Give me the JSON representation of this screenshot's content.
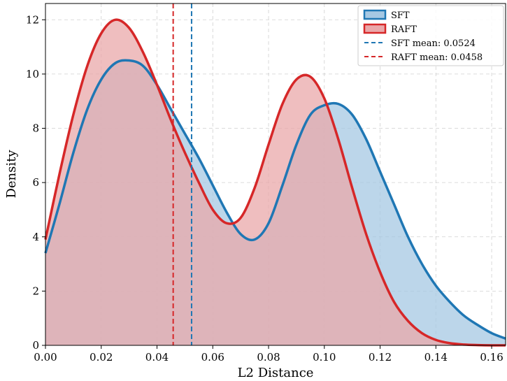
{
  "chart_data": {
    "type": "area",
    "xlabel": "L2 Distance",
    "ylabel": "Density",
    "xlim": [
      0,
      0.165
    ],
    "ylim": [
      0,
      12.6
    ],
    "xticks": [
      "0.00",
      "0.02",
      "0.04",
      "0.06",
      "0.08",
      "0.10",
      "0.12",
      "0.14",
      "0.16"
    ],
    "yticks": [
      "0",
      "2",
      "4",
      "6",
      "8",
      "10",
      "12"
    ],
    "grid": true,
    "legend_position": "top-right",
    "series": [
      {
        "name": "SFT",
        "color": "#1f77b4",
        "fill_color": "#a6c8e3",
        "x": [
          0.0,
          0.005,
          0.01,
          0.015,
          0.02,
          0.025,
          0.03,
          0.035,
          0.04,
          0.045,
          0.05,
          0.055,
          0.06,
          0.065,
          0.07,
          0.075,
          0.08,
          0.085,
          0.09,
          0.095,
          0.1,
          0.105,
          0.11,
          0.115,
          0.12,
          0.125,
          0.13,
          0.135,
          0.14,
          0.145,
          0.15,
          0.155,
          0.16,
          0.165
        ],
        "y": [
          3.4,
          5.2,
          7.1,
          8.7,
          9.8,
          10.4,
          10.5,
          10.3,
          9.6,
          8.7,
          7.8,
          6.9,
          5.9,
          4.9,
          4.1,
          3.9,
          4.5,
          5.9,
          7.4,
          8.5,
          8.85,
          8.9,
          8.5,
          7.6,
          6.4,
          5.2,
          4.0,
          3.0,
          2.2,
          1.6,
          1.1,
          0.75,
          0.45,
          0.25
        ]
      },
      {
        "name": "RAFT",
        "color": "#d62728",
        "fill_color": "#eaa8aa",
        "x": [
          0.0,
          0.005,
          0.01,
          0.015,
          0.02,
          0.025,
          0.03,
          0.035,
          0.04,
          0.045,
          0.05,
          0.055,
          0.06,
          0.065,
          0.07,
          0.075,
          0.08,
          0.085,
          0.09,
          0.095,
          0.1,
          0.105,
          0.11,
          0.115,
          0.12,
          0.125,
          0.13,
          0.135,
          0.14,
          0.145,
          0.15,
          0.155,
          0.16,
          0.165
        ],
        "y": [
          3.9,
          6.3,
          8.5,
          10.3,
          11.5,
          12.0,
          11.7,
          10.8,
          9.6,
          8.3,
          7.1,
          6.0,
          5.0,
          4.5,
          4.7,
          5.8,
          7.4,
          8.9,
          9.8,
          9.9,
          9.1,
          7.6,
          5.8,
          4.1,
          2.7,
          1.6,
          0.9,
          0.45,
          0.2,
          0.08,
          0.03,
          0.01,
          0.0,
          0.0
        ]
      }
    ],
    "reference_lines": [
      {
        "name": "SFT mean: 0.0524",
        "x": 0.0524,
        "color": "#1f77b4",
        "style": "dashed"
      },
      {
        "name": "RAFT mean: 0.0458",
        "x": 0.0458,
        "color": "#d62728",
        "style": "dashed"
      }
    ]
  }
}
